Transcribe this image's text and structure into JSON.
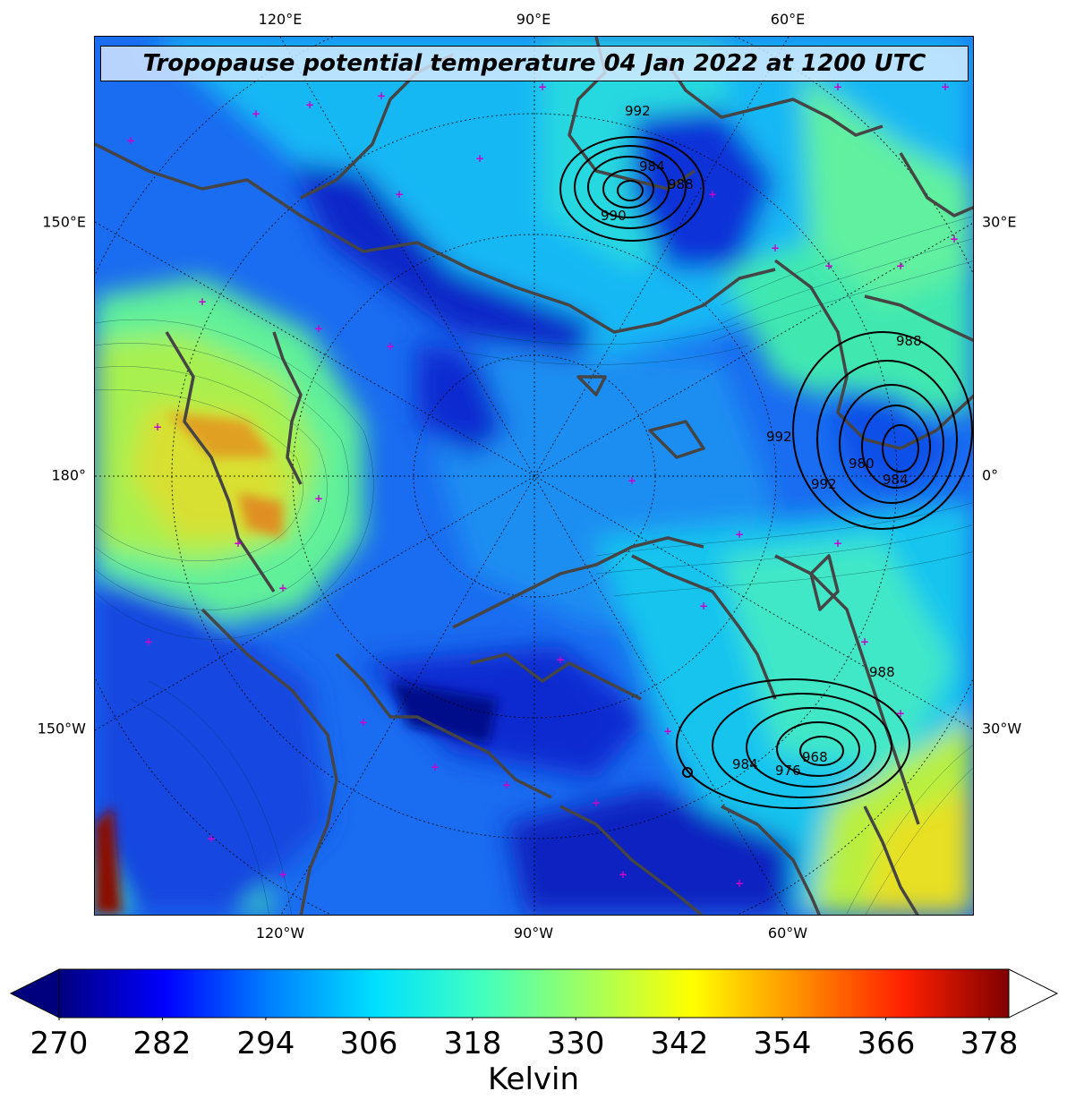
{
  "title": "Tropopause potential temperature 04 Jan 2022 at 1200 UTC",
  "lon_labels_top": [
    "120°E",
    "90°E",
    "60°E"
  ],
  "lon_labels_bottom": [
    "120°W",
    "90°W",
    "60°W"
  ],
  "lat_labels_left": [
    "150°E",
    "180°",
    "150°W"
  ],
  "lat_labels_right": [
    "30°E",
    "0°",
    "30°W"
  ],
  "isobar_labels": [
    "992",
    "984",
    "988",
    "990",
    "988",
    "992",
    "980",
    "984",
    "992",
    "988",
    "984",
    "976",
    "968"
  ],
  "colorbar": {
    "label": "Kelvin",
    "ticks": [
      "270",
      "282",
      "294",
      "306",
      "318",
      "330",
      "342",
      "354",
      "366",
      "378"
    ],
    "colors": [
      "#00007f",
      "#0000ff",
      "#0080ff",
      "#00e0ff",
      "#40ffc0",
      "#a0ff60",
      "#ffff00",
      "#ff9000",
      "#ff2000",
      "#800000"
    ],
    "extend": "both"
  },
  "colors": {
    "coast": "#404040",
    "marker": "#cc00cc",
    "isobar": "#000000"
  }
}
